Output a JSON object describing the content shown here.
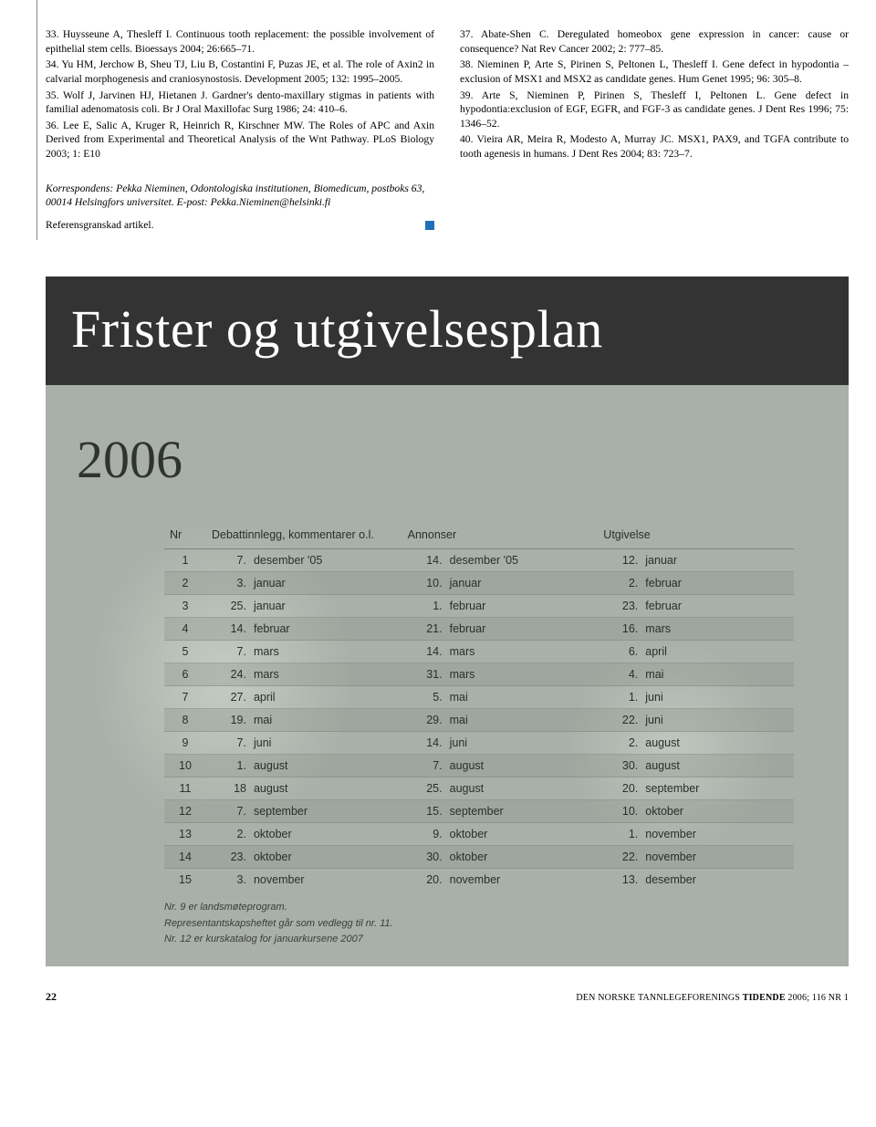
{
  "references": [
    "33. Huysseune A, Thesleff I. Continuous tooth replacement: the possible involvement of epithelial stem cells. Bioessays 2004; 26:665–71.",
    "34. Yu HM, Jerchow B, Sheu TJ, Liu B, Costantini F, Puzas JE, et al. The role of Axin2 in calvarial morphogenesis and craniosynostosis. Development 2005; 132: 1995–2005.",
    "35. Wolf J, Jarvinen HJ, Hietanen J. Gardner's dento-maxillary stigmas in patients with familial adenomatosis coli. Br J Oral Maxillofac Surg 1986; 24: 410–6.",
    "36. Lee E, Salic A, Kruger R, Heinrich R, Kirschner MW. The Roles of APC and Axin Derived from Experimental and Theoretical Analysis of the Wnt Pathway. PLoS Biology 2003; 1: E10",
    "37. Abate-Shen C. Deregulated homeobox gene expression in cancer: cause or consequence? Nat Rev Cancer 2002; 2: 777–85.",
    "38. Nieminen P, Arte S, Pirinen S, Peltonen L, Thesleff I. Gene defect in hypodontia – exclusion of MSX1 and MSX2 as candidate genes. Hum Genet 1995; 96: 305–8.",
    "39. Arte S, Nieminen P, Pirinen S, Thesleff I, Peltonen L. Gene defect in hypodontia:exclusion of EGF, EGFR, and FGF-3 as candidate genes. J Dent Res 1996; 75: 1346–52.",
    "40. Vieira AR, Meira R, Modesto A, Murray JC. MSX1, PAX9, and TGFA contribute to tooth agenesis in humans. J Dent Res 2004; 83: 723–7."
  ],
  "correspondence": "Korrespondens: Pekka Nieminen, Odontologiska institutionen, Biomedicum, postboks 63, 00014 Helsingfors universitet. E-post: Pekka.Nieminen@helsinki.fi",
  "peer_line": "Referensgranskad artikel.",
  "ad": {
    "title": "Frister og utgivelsesplan",
    "year": "2006",
    "columns": [
      "Nr",
      "Debattinnlegg, kommentarer o.l.",
      "Annonser",
      "Utgivelse"
    ],
    "rows": [
      {
        "nr": "1",
        "d1": "7.",
        "m1": "desember '05",
        "d2": "14.",
        "m2": "desember '05",
        "d3": "12.",
        "m3": "januar"
      },
      {
        "nr": "2",
        "d1": "3.",
        "m1": "januar",
        "d2": "10.",
        "m2": "januar",
        "d3": "2.",
        "m3": "februar"
      },
      {
        "nr": "3",
        "d1": "25.",
        "m1": "januar",
        "d2": "1.",
        "m2": "februar",
        "d3": "23.",
        "m3": "februar"
      },
      {
        "nr": "4",
        "d1": "14.",
        "m1": "februar",
        "d2": "21.",
        "m2": "februar",
        "d3": "16.",
        "m3": "mars"
      },
      {
        "nr": "5",
        "d1": "7.",
        "m1": "mars",
        "d2": "14.",
        "m2": "mars",
        "d3": "6.",
        "m3": "april"
      },
      {
        "nr": "6",
        "d1": "24.",
        "m1": "mars",
        "d2": "31.",
        "m2": "mars",
        "d3": "4.",
        "m3": "mai"
      },
      {
        "nr": "7",
        "d1": "27.",
        "m1": "april",
        "d2": "5.",
        "m2": "mai",
        "d3": "1.",
        "m3": "juni"
      },
      {
        "nr": "8",
        "d1": "19.",
        "m1": "mai",
        "d2": "29.",
        "m2": "mai",
        "d3": "22.",
        "m3": "juni"
      },
      {
        "nr": "9",
        "d1": "7.",
        "m1": "juni",
        "d2": "14.",
        "m2": "juni",
        "d3": "2.",
        "m3": "august"
      },
      {
        "nr": "10",
        "d1": "1.",
        "m1": "august",
        "d2": "7.",
        "m2": "august",
        "d3": "30.",
        "m3": "august"
      },
      {
        "nr": "11",
        "d1": "18",
        "m1": "august",
        "d2": "25.",
        "m2": "august",
        "d3": "20.",
        "m3": "september"
      },
      {
        "nr": "12",
        "d1": "7.",
        "m1": "september",
        "d2": "15.",
        "m2": "september",
        "d3": "10.",
        "m3": "oktober"
      },
      {
        "nr": "13",
        "d1": "2.",
        "m1": "oktober",
        "d2": "9.",
        "m2": "oktober",
        "d3": "1.",
        "m3": "november"
      },
      {
        "nr": "14",
        "d1": "23.",
        "m1": "oktober",
        "d2": "30.",
        "m2": "oktober",
        "d3": "22.",
        "m3": "november"
      },
      {
        "nr": "15",
        "d1": "3.",
        "m1": "november",
        "d2": "20.",
        "m2": "november",
        "d3": "13.",
        "m3": "desember"
      }
    ],
    "footnotes": [
      "Nr. 9 er landsmøteprogram.",
      "Representantskapsheftet går som vedlegg til nr. 11.",
      "Nr. 12 er kurskatalog for januarkursene 2007"
    ]
  },
  "footer": {
    "page": "22",
    "pub_prefix": "DEN NORSKE TANNLEGEFORENINGS ",
    "pub_bold": "TIDENDE",
    "pub_suffix": " 2006; 116 NR 1"
  },
  "colors": {
    "accent_blue": "#1e6fb8",
    "ad_bg": "#a9b0a9",
    "ad_header_bg": "#333333",
    "row_stripe": "rgba(140,148,140,0.35)"
  }
}
